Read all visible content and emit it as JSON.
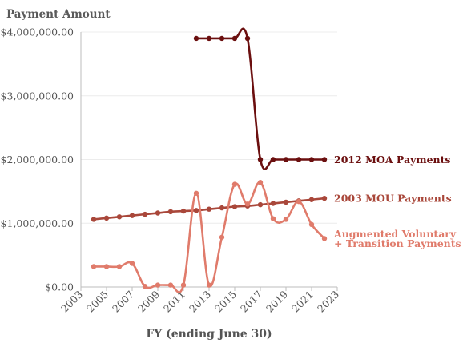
{
  "chart_data": {
    "type": "line",
    "title": "",
    "ylabel": "Payment Amount",
    "xlabel": "FY (ending June 30)",
    "xlim": [
      2003,
      2023
    ],
    "ylim": [
      0,
      4000000
    ],
    "x_ticks": [
      2003,
      2005,
      2007,
      2009,
      2011,
      2013,
      2015,
      2017,
      2019,
      2021,
      2023
    ],
    "y_ticks": [
      0,
      1000000,
      2000000,
      3000000,
      4000000
    ],
    "y_tick_labels": [
      "$0.00",
      "$1,000,000.00",
      "$2,000,000.00",
      "$3,000,000.00",
      "$4,000,000.00"
    ],
    "grid": true,
    "legend": "direct labels at line ends (right)",
    "series": [
      {
        "name": "2012 MOA Payments",
        "label_lines": [
          "2012 MOA Payments"
        ],
        "color": "#6b0f0f",
        "x": [
          2012,
          2013,
          2014,
          2015,
          2016,
          2017,
          2018,
          2019,
          2020,
          2021,
          2022
        ],
        "values": [
          3900000,
          3900000,
          3900000,
          3900000,
          3900000,
          2000000,
          2000000,
          2000000,
          2000000,
          2000000,
          2000000
        ]
      },
      {
        "name": "2003 MOU Payments",
        "label_lines": [
          "2003 MOU Payments"
        ],
        "color": "#a9473a",
        "x": [
          2004,
          2005,
          2006,
          2007,
          2008,
          2009,
          2010,
          2011,
          2012,
          2013,
          2014,
          2015,
          2016,
          2017,
          2018,
          2019,
          2020,
          2021,
          2022
        ],
        "values": [
          1060000,
          1080000,
          1100000,
          1120000,
          1140000,
          1160000,
          1180000,
          1190000,
          1200000,
          1220000,
          1240000,
          1260000,
          1270000,
          1290000,
          1310000,
          1330000,
          1350000,
          1370000,
          1390000
        ]
      },
      {
        "name": "Augmented Voluntary + Transition Payments",
        "label_lines": [
          "Augmented Voluntary",
          "+ Transition Payments"
        ],
        "color": "#e07b6b",
        "x": [
          2004,
          2005,
          2006,
          2007,
          2008,
          2009,
          2010,
          2011,
          2012,
          2013,
          2014,
          2015,
          2016,
          2017,
          2018,
          2019,
          2020,
          2021,
          2022
        ],
        "values": [
          320000,
          320000,
          320000,
          370000,
          10000,
          30000,
          30000,
          30000,
          1470000,
          30000,
          780000,
          1610000,
          1300000,
          1640000,
          1070000,
          1060000,
          1340000,
          980000,
          760000
        ]
      }
    ]
  }
}
